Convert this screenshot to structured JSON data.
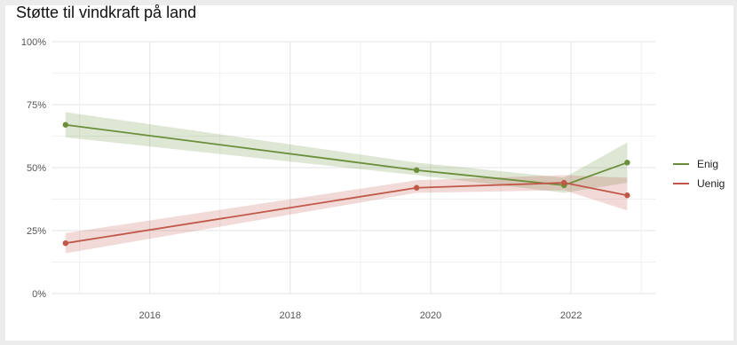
{
  "chart_data": {
    "type": "line",
    "title": "Støtte til vindkraft på land",
    "xlabel": "",
    "ylabel": "",
    "xlim": [
      2014.6,
      2023.2
    ],
    "ylim": [
      0,
      100
    ],
    "x_ticks": [
      2016,
      2018,
      2020,
      2022
    ],
    "y_ticks": [
      0,
      25,
      50,
      75,
      100
    ],
    "y_tick_labels": [
      "0%",
      "25%",
      "50%",
      "75%",
      "100%"
    ],
    "grid": true,
    "legend_position": "right",
    "series": [
      {
        "name": "Enig",
        "color": "#6b8e3a",
        "x": [
          2014.8,
          2019.8,
          2021.9,
          2022.8
        ],
        "values": [
          67,
          49,
          43,
          52
        ],
        "ci_low": [
          62,
          47,
          40,
          44
        ],
        "ci_high": [
          72,
          52,
          46,
          60
        ]
      },
      {
        "name": "Uenig",
        "color": "#c0584a",
        "x": [
          2014.8,
          2019.8,
          2021.9,
          2022.8
        ],
        "values": [
          20,
          42,
          44,
          39
        ],
        "ci_low": [
          16,
          40,
          41,
          33
        ],
        "ci_high": [
          24,
          45,
          47,
          46
        ]
      }
    ]
  }
}
